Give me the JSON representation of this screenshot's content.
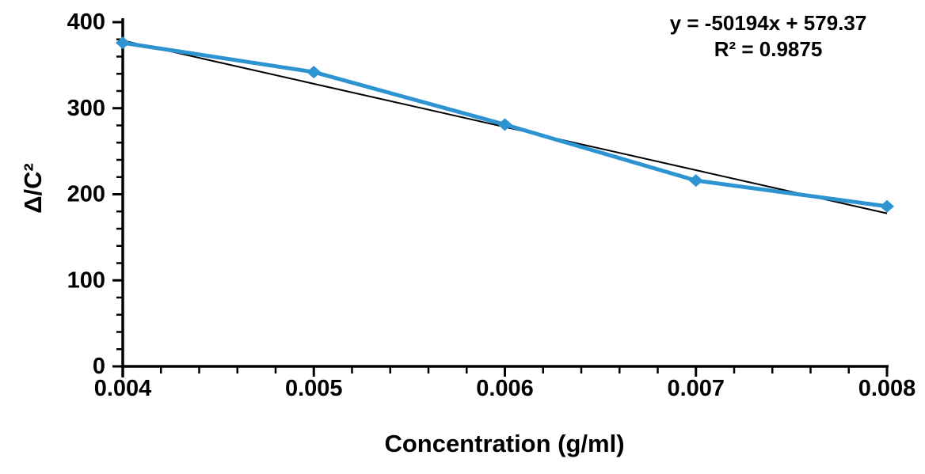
{
  "page": {
    "background_color": "#ffffff"
  },
  "chart_data": {
    "type": "line",
    "title": "",
    "xlabel": "Concentration (g/ml)",
    "ylabel": "Δ/C²",
    "x": [
      0.004,
      0.005,
      0.006,
      0.007,
      0.008
    ],
    "y": [
      376,
      342,
      281,
      216,
      186
    ],
    "xlim": [
      0.004,
      0.008
    ],
    "ylim": [
      0,
      400
    ],
    "x_major_step": 0.001,
    "x_minor_step": 0.0002,
    "y_major_step": 100,
    "y_minor_step": 20,
    "x_tick_labels": [
      "0.004",
      "0.005",
      "0.006",
      "0.007",
      "0.008"
    ],
    "y_tick_labels": [
      "0",
      "100",
      "200",
      "300",
      "400"
    ],
    "grid": false,
    "legend_position": "none",
    "line_color": "#2E93D1",
    "line_width": 5,
    "marker": "diamond",
    "marker_color": "#2E93D1",
    "axis_color": "#000000",
    "trendline": {
      "type": "linear",
      "slope": -50194,
      "intercept": 579.37,
      "color": "#000000",
      "equation_label": "y = -50194x + 579.37",
      "r2_label": "R² = 0.9875"
    }
  }
}
